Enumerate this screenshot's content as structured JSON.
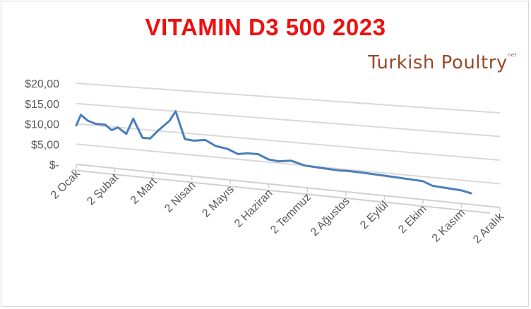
{
  "chart_data": {
    "type": "line",
    "title": "VITAMIN D3 500 2023",
    "xlabel": "",
    "ylabel": "",
    "ylim": [
      0,
      20
    ],
    "yticks": [
      "$20,00",
      "$15,00",
      "$10,00",
      "$5,00",
      "$-"
    ],
    "xticks": [
      "2 Ocak",
      "2 Şubat",
      "2 Mart",
      "2 Nisan",
      "2 Mayıs",
      "2 Haziran",
      "2 Temmuz",
      "2 Ağustos",
      "2 Eylül",
      "2 Ekim",
      "2 Kasım",
      "2 Aralık"
    ],
    "grid": true,
    "legend": "none",
    "series": [
      {
        "color": "#4a7ebb",
        "points": [
          [
            0.0,
            9.6
          ],
          [
            0.12,
            12.3
          ],
          [
            0.3,
            11.0
          ],
          [
            0.5,
            10.4
          ],
          [
            0.75,
            10.4
          ],
          [
            0.92,
            9.2
          ],
          [
            1.08,
            10.0
          ],
          [
            1.3,
            8.6
          ],
          [
            1.48,
            12.4
          ],
          [
            1.72,
            8.0
          ],
          [
            1.92,
            8.0
          ],
          [
            2.12,
            10.0
          ],
          [
            2.42,
            12.6
          ],
          [
            2.58,
            15.0
          ],
          [
            2.82,
            8.6
          ],
          [
            3.05,
            8.4
          ],
          [
            3.35,
            8.8
          ],
          [
            3.62,
            7.6
          ],
          [
            3.92,
            7.2
          ],
          [
            4.2,
            6.2
          ],
          [
            4.45,
            6.6
          ],
          [
            4.72,
            6.6
          ],
          [
            5.0,
            5.6
          ],
          [
            5.25,
            5.4
          ],
          [
            5.58,
            5.8
          ],
          [
            5.92,
            5.0
          ],
          [
            6.35,
            4.8
          ],
          [
            6.85,
            4.6
          ],
          [
            7.05,
            4.7
          ],
          [
            7.5,
            4.6
          ],
          [
            8.0,
            4.4
          ],
          [
            8.5,
            4.2
          ],
          [
            9.0,
            4.0
          ],
          [
            9.25,
            3.2
          ],
          [
            10.0,
            2.8
          ],
          [
            10.25,
            2.4
          ]
        ]
      }
    ]
  },
  "logo_text": "Turkish Poultry",
  "logo_sub": "net"
}
